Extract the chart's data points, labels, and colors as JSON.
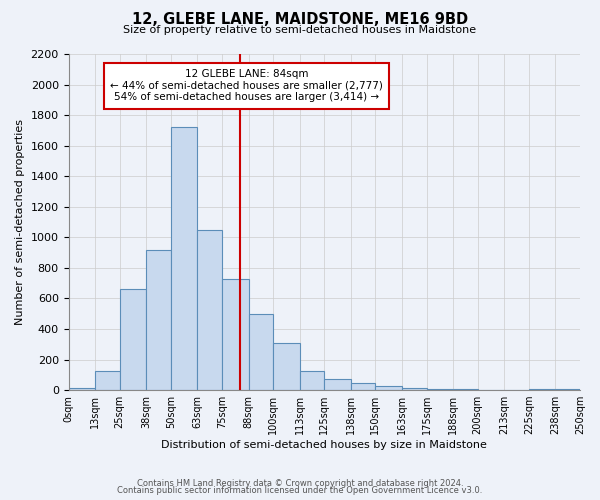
{
  "title": "12, GLEBE LANE, MAIDSTONE, ME16 9BD",
  "subtitle": "Size of property relative to semi-detached houses in Maidstone",
  "xlabel": "Distribution of semi-detached houses by size in Maidstone",
  "ylabel": "Number of semi-detached properties",
  "bin_labels": [
    "0sqm",
    "13sqm",
    "25sqm",
    "38sqm",
    "50sqm",
    "63sqm",
    "75sqm",
    "88sqm",
    "100sqm",
    "113sqm",
    "125sqm",
    "138sqm",
    "150sqm",
    "163sqm",
    "175sqm",
    "188sqm",
    "200sqm",
    "213sqm",
    "225sqm",
    "238sqm",
    "250sqm"
  ],
  "bar_values": [
    15,
    125,
    660,
    920,
    1720,
    1050,
    730,
    500,
    310,
    125,
    70,
    45,
    30,
    15,
    5,
    10,
    3,
    2,
    10,
    5
  ],
  "bar_left_edges": [
    0,
    13,
    25,
    38,
    50,
    63,
    75,
    88,
    100,
    113,
    125,
    138,
    150,
    163,
    175,
    188,
    200,
    213,
    225,
    238
  ],
  "bar_widths": [
    13,
    12,
    13,
    12,
    13,
    12,
    13,
    12,
    13,
    12,
    13,
    12,
    13,
    12,
    13,
    12,
    13,
    12,
    13,
    12
  ],
  "property_size": 84,
  "annotation_title": "12 GLEBE LANE: 84sqm",
  "annotation_line1": "← 44% of semi-detached houses are smaller (2,777)",
  "annotation_line2": "54% of semi-detached houses are larger (3,414) →",
  "bar_color": "#c8d9ee",
  "bar_edge_color": "#5b8db8",
  "vline_color": "#cc0000",
  "annotation_box_color": "#ffffff",
  "annotation_box_edge_color": "#cc0000",
  "background_color": "#eef2f9",
  "grid_color": "#cccccc",
  "ylim": [
    0,
    2200
  ],
  "xlim": [
    0,
    250
  ],
  "footer_line1": "Contains HM Land Registry data © Crown copyright and database right 2024.",
  "footer_line2": "Contains public sector information licensed under the Open Government Licence v3.0."
}
